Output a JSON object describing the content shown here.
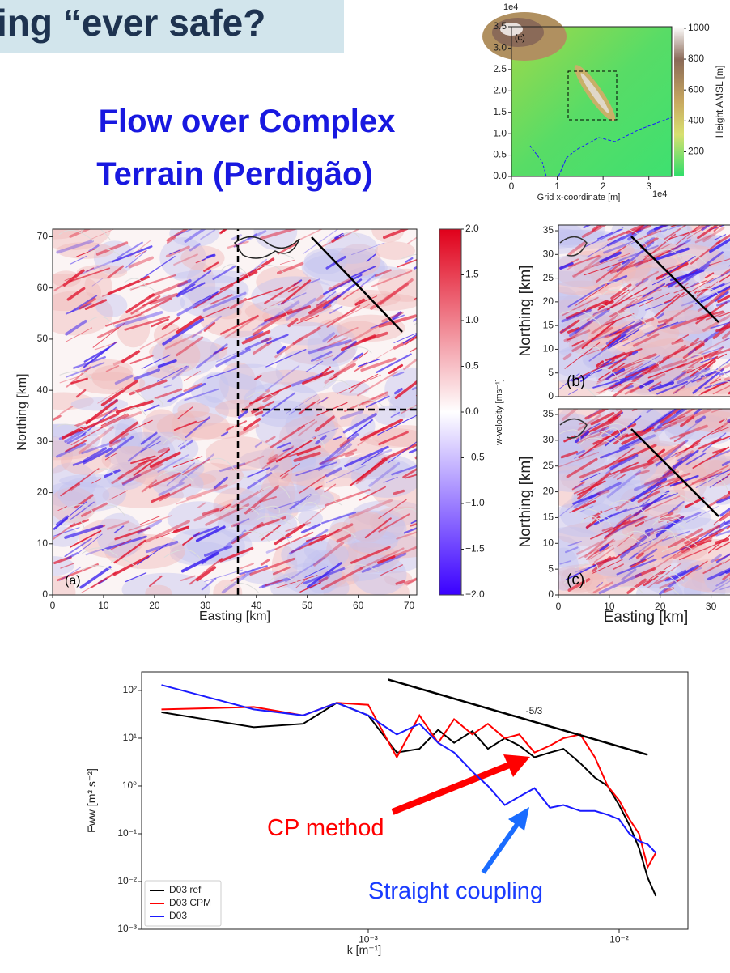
{
  "banner": {
    "title": "ing “ever safe?"
  },
  "heading": {
    "lines": [
      "Flow over Complex",
      "Terrain (Perdigão)"
    ]
  },
  "terrain_map": {
    "panel_label": "(c)",
    "xlabel": "Grid x-coordinate [m]",
    "x_offset": "1e4",
    "y_offset": "1e4",
    "xlim": [
      0,
      3.5
    ],
    "ylim": [
      0,
      3.5
    ],
    "xticks": [
      0,
      1,
      2,
      3
    ],
    "yticks": [
      {
        "value": 0,
        "label": "0.0"
      },
      {
        "value": 0.5,
        "label": "0.5"
      },
      {
        "value": 1,
        "label": "1.0"
      },
      {
        "value": 1.5,
        "label": "1.5"
      },
      {
        "value": 2,
        "label": "2.0"
      },
      {
        "value": 2.5,
        "label": "2.5"
      },
      {
        "value": 3,
        "label": "3.0"
      },
      {
        "value": 3.5,
        "label": "3.5"
      }
    ],
    "colorbar": {
      "label": "Height AMSL [m]",
      "lim": [
        40,
        1010
      ],
      "ticks": [
        200,
        400,
        600,
        800,
        1000
      ]
    }
  },
  "velocity_map": {
    "panel_label": "(a)",
    "xlabel": "Easting [km]",
    "ylabel": "Northing [km]",
    "xlim": [
      0,
      71.5
    ],
    "ylim": [
      0,
      71.5
    ],
    "xticks": [
      0,
      10,
      20,
      30,
      40,
      50,
      60,
      70
    ],
    "yticks": [
      0,
      10,
      20,
      30,
      40,
      50,
      60,
      70
    ],
    "colorbar": {
      "label": "w-velocity [ms⁻¹]",
      "lim": [
        -2,
        2
      ],
      "ticks": [
        {
          "value": 2,
          "label": "2.0"
        },
        {
          "value": 1.5,
          "label": "1.5"
        },
        {
          "value": 1,
          "label": "1.0"
        },
        {
          "value": 0.5,
          "label": "0.5"
        },
        {
          "value": 0,
          "label": "0.0"
        },
        {
          "value": -0.5,
          "label": "−0.5"
        },
        {
          "value": -1,
          "label": "−1.0"
        },
        {
          "value": -1.5,
          "label": "−1.5"
        },
        {
          "value": -2,
          "label": "−2.0"
        }
      ]
    }
  },
  "sub_maps": [
    {
      "panel_label": "(b)",
      "ylabel": "Northing [km]",
      "ylim": [
        0,
        36.2
      ],
      "yticks": [
        0,
        5,
        10,
        15,
        20,
        25,
        30,
        35
      ]
    },
    {
      "panel_label": "(c)",
      "ylabel": "Northing [km]",
      "xlabel": "Easting [km]",
      "xlim": [
        0,
        35
      ],
      "ylim": [
        0,
        36.1
      ],
      "xticks": [
        0,
        10,
        20,
        30
      ],
      "yticks": [
        0,
        5,
        10,
        15,
        20,
        25,
        30,
        35
      ]
    }
  ],
  "chart_data": {
    "type": "line",
    "xlabel": "k [m⁻¹]",
    "ylabel": "Fww [m³ s⁻²]",
    "xscale": "log",
    "yscale": "log",
    "xlim": [
      0.000125,
      0.0188
    ],
    "ylim": [
      0.001,
      245
    ],
    "xticks": [
      {
        "value": 0.001,
        "label": "10⁻³"
      },
      {
        "value": 0.01,
        "label": "10⁻²"
      }
    ],
    "yticks": [
      {
        "value": 0.001,
        "label": "10⁻³"
      },
      {
        "value": 0.01,
        "label": "10⁻²"
      },
      {
        "value": 0.1,
        "label": "10⁻¹"
      },
      {
        "value": 1,
        "label": "10⁰"
      },
      {
        "value": 10,
        "label": "10¹"
      },
      {
        "value": 100,
        "label": "10²"
      }
    ],
    "legend": "lower left",
    "x": [
      0.00015,
      0.00035,
      0.00055,
      0.00075,
      0.001,
      0.0013,
      0.0016,
      0.0019,
      0.0022,
      0.0026,
      0.003,
      0.0035,
      0.004,
      0.0046,
      0.0053,
      0.006,
      0.007,
      0.008,
      0.009,
      0.01,
      0.011,
      0.012,
      0.013,
      0.014
    ],
    "series": [
      {
        "name": "D03 ref",
        "color": "#000000",
        "values": [
          35,
          17,
          20,
          55,
          30,
          5,
          6,
          15,
          8,
          14,
          6,
          10,
          7,
          4,
          5,
          6,
          3,
          1.5,
          1,
          0.4,
          0.15,
          0.05,
          0.012,
          0.005
        ]
      },
      {
        "name": "D03 CPM",
        "color": "#ff0000",
        "values": [
          40,
          45,
          30,
          55,
          50,
          4,
          30,
          8,
          25,
          12,
          20,
          10,
          12,
          5,
          7,
          10,
          12,
          4,
          1,
          0.5,
          0.2,
          0.1,
          0.02,
          0.04
        ]
      },
      {
        "name": "D03",
        "color": "#1a1aff",
        "values": [
          130,
          40,
          30,
          55,
          30,
          12,
          20,
          8,
          5,
          2,
          1,
          0.4,
          0.6,
          0.9,
          0.35,
          0.4,
          0.3,
          0.3,
          0.25,
          0.2,
          0.1,
          0.07,
          0.06,
          0.04
        ]
      }
    ],
    "slope_line": {
      "x": [
        0.0012,
        0.013
      ],
      "values": [
        170,
        4.5
      ],
      "label": "-5/3",
      "color": "#000000"
    },
    "annotations": [
      {
        "text": "CP method",
        "color": "#ff0000"
      },
      {
        "text": "Straight coupling",
        "color": "#1a3cff"
      }
    ]
  }
}
